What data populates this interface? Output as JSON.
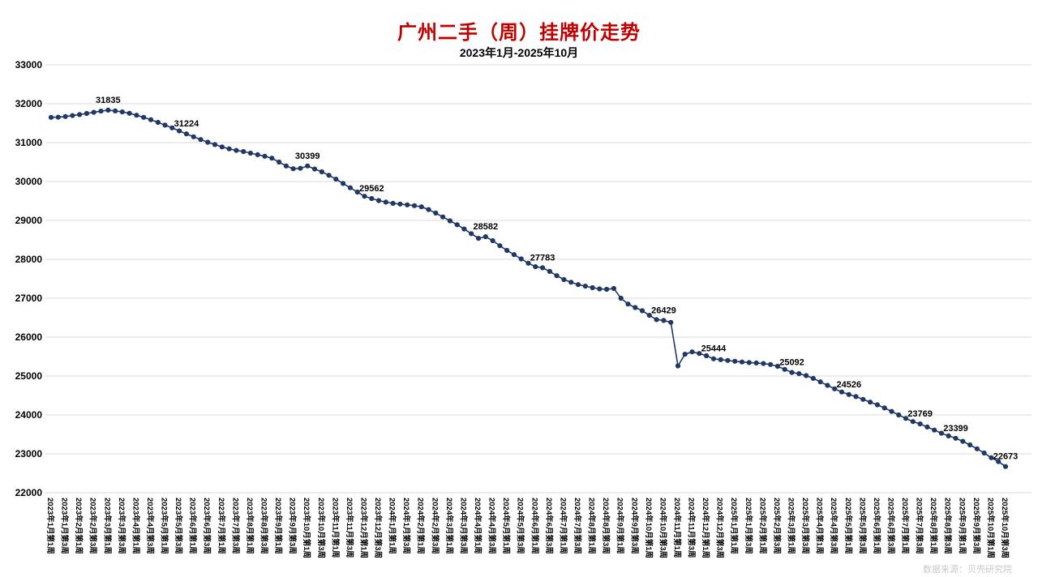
{
  "header": {
    "title": "广州二手（周）挂牌价走势",
    "subtitle": "2023年1月-2025年10月"
  },
  "watermark": "数据来源：贝壳研究院",
  "chart_data": {
    "type": "line",
    "title": "广州二手（周）挂牌价走势",
    "subtitle": "2023年1月-2025年10月",
    "series_name": "挂牌价",
    "series_color": "#1f3864",
    "grid": true,
    "legend": "none",
    "ylim": [
      22000,
      33000
    ],
    "y_step": 1000,
    "points_per_label": 2,
    "x_labels": [
      "2023年1月第1周",
      "2023年1月第3周",
      "2023年2月第1周",
      "2023年2月第3周",
      "2023年3月第1周",
      "2023年3月第3周",
      "2023年4月第1周",
      "2023年4月第3周",
      "2023年5月第1周",
      "2023年5月第3周",
      "2023年6月第1周",
      "2023年6月第3周",
      "2023年7月第1周",
      "2023年7月第3周",
      "2023年8月第1周",
      "2023年8月第3周",
      "2023年9月第1周",
      "2023年9月第3周",
      "2023年10月第1周",
      "2023年10月第3周",
      "2023年11月第1周",
      "2023年11月第3周",
      "2023年12月第1周",
      "2023年12月第3周",
      "2024年1月第1周",
      "2024年1月第3周",
      "2024年2月第1周",
      "2024年2月第3周",
      "2024年3月第1周",
      "2024年3月第3周",
      "2024年4月第1周",
      "2024年4月第3周",
      "2024年5月第1周",
      "2024年5月第3周",
      "2024年6月第1周",
      "2024年6月第3周",
      "2024年7月第1周",
      "2024年7月第3周",
      "2024年8月第1周",
      "2024年8月第3周",
      "2024年9月第1周",
      "2024年9月第3周",
      "2024年10月第1周",
      "2024年10月第3周",
      "2024年11月第1周",
      "2024年11月第3周",
      "2024年12月第1周",
      "2024年12月第3周",
      "2025年1月第1周",
      "2025年1月第3周",
      "2025年2月第1周",
      "2025年2月第3周",
      "2025年3月第1周",
      "2025年3月第3周",
      "2025年4月第1周",
      "2025年4月第3周",
      "2025年5月第1周",
      "2025年5月第3周",
      "2025年6月第1周",
      "2025年6月第3周",
      "2025年7月第1周",
      "2025年7月第3周",
      "2025年8月第1周",
      "2025年8月第3周",
      "2025年9月第1周",
      "2025年9月第3周",
      "2025年10月第1周",
      "2025年10月第3周"
    ],
    "values": [
      31650,
      31655,
      31670,
      31695,
      31720,
      31750,
      31780,
      31810,
      31835,
      31815,
      31790,
      31755,
      31705,
      31650,
      31590,
      31520,
      31450,
      31380,
      31300,
      31224,
      31150,
      31080,
      31010,
      30950,
      30890,
      30840,
      30800,
      30770,
      30730,
      30690,
      30650,
      30600,
      30500,
      30400,
      30330,
      30340,
      30399,
      30320,
      30250,
      30160,
      30060,
      29950,
      29840,
      29730,
      29620,
      29562,
      29510,
      29470,
      29440,
      29420,
      29400,
      29380,
      29350,
      29280,
      29190,
      29090,
      28990,
      28890,
      28780,
      28660,
      28540,
      28582,
      28480,
      28350,
      28230,
      28120,
      28010,
      27900,
      27810,
      27783,
      27690,
      27580,
      27480,
      27410,
      27350,
      27310,
      27270,
      27240,
      27230,
      27250,
      27000,
      26850,
      26760,
      26680,
      26560,
      26450,
      26429,
      26380,
      25260,
      25560,
      25620,
      25580,
      25520,
      25444,
      25420,
      25400,
      25380,
      25360,
      25345,
      25335,
      25320,
      25295,
      25250,
      25170,
      25092,
      25060,
      25010,
      24940,
      24850,
      24760,
      24670,
      24590,
      24526,
      24470,
      24400,
      24330,
      24260,
      24180,
      24090,
      24000,
      23910,
      23830,
      23769,
      23690,
      23610,
      23530,
      23460,
      23399,
      23320,
      23230,
      23130,
      23020,
      22900,
      22800,
      22673
    ],
    "annotations": [
      {
        "i": 8,
        "text": "31835"
      },
      {
        "i": 19,
        "text": "31224"
      },
      {
        "i": 36,
        "text": "30399"
      },
      {
        "i": 45,
        "text": "29562"
      },
      {
        "i": 61,
        "text": "28582"
      },
      {
        "i": 69,
        "text": "27783"
      },
      {
        "i": 86,
        "text": "26429"
      },
      {
        "i": 93,
        "text": "25444"
      },
      {
        "i": 104,
        "text": "25092"
      },
      {
        "i": 112,
        "text": "24526"
      },
      {
        "i": 122,
        "text": "23769"
      },
      {
        "i": 127,
        "text": "23399"
      },
      {
        "i": 134,
        "text": "22673"
      }
    ]
  }
}
